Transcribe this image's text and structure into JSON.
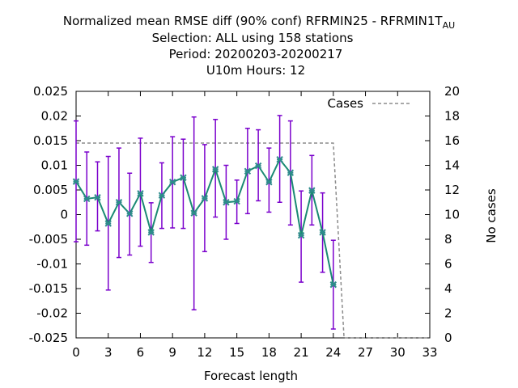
{
  "chart_data": {
    "type": "line",
    "title_lines": [
      "Normalized mean RMSE diff (90% conf) RFRMIN25 - RFRMIN1",
      "Selection: ALL using   158 stations",
      "Period: 20200203-20200217",
      "U10m   Hours:  12"
    ],
    "title_tail": {
      "base": "T",
      "sub": "AU"
    },
    "xlabel": "Forecast length",
    "ylabel_right": "No cases",
    "xlim": [
      0,
      33
    ],
    "ylim": [
      -0.025,
      0.025
    ],
    "y2lim": [
      0,
      20
    ],
    "x_ticks": [
      0,
      3,
      6,
      9,
      12,
      15,
      18,
      21,
      24,
      27,
      30,
      33
    ],
    "y_ticks": [
      -0.025,
      -0.02,
      -0.015,
      -0.01,
      -0.005,
      0,
      0.005,
      0.01,
      0.015,
      0.02,
      0.025
    ],
    "y_tick_labels": [
      "-0.025",
      "-0.02",
      "-0.015",
      "-0.01",
      "-0.005",
      "0",
      "0.005",
      "0.01",
      "0.015",
      "0.02",
      "0.025"
    ],
    "y2_ticks": [
      0,
      2,
      4,
      6,
      8,
      10,
      12,
      14,
      16,
      18,
      20
    ],
    "legend": {
      "label": "Cases",
      "placement": "top-right"
    },
    "colors": {
      "line": "#1a8a73",
      "marker": "#2e8b8b",
      "errorbar": "#7a00cc",
      "cases": "#8c8c8c"
    },
    "series": [
      {
        "style": "line-with-errorbars",
        "x": [
          0,
          1,
          2,
          3,
          4,
          5,
          6,
          7,
          8,
          9,
          10,
          11,
          12,
          13,
          14,
          15,
          16,
          17,
          18,
          19,
          20,
          21,
          22,
          23,
          24
        ],
        "y": [
          0.0067,
          0.0032,
          0.0035,
          -0.0018,
          0.0025,
          0.0002,
          0.0043,
          -0.0036,
          0.0039,
          0.0066,
          0.0075,
          0.0003,
          0.0033,
          0.0092,
          0.0025,
          0.0027,
          0.0088,
          0.0099,
          0.0066,
          0.0112,
          0.0085,
          -0.0042,
          0.0049,
          -0.0036,
          -0.0142
        ],
        "err_low": [
          -0.0055,
          -0.0062,
          -0.0033,
          -0.0153,
          -0.0087,
          -0.0082,
          -0.0064,
          -0.0097,
          -0.0028,
          -0.0027,
          -0.0028,
          -0.0193,
          -0.0075,
          -0.0005,
          -0.005,
          -0.0018,
          0.0002,
          0.0028,
          0.0005,
          0.0025,
          -0.0021,
          -0.0137,
          -0.0021,
          -0.0117,
          -0.0232
        ],
        "err_high": [
          0.019,
          0.0127,
          0.0107,
          0.0118,
          0.0135,
          0.0084,
          0.0155,
          0.0024,
          0.0105,
          0.0158,
          0.0153,
          0.0198,
          0.0142,
          0.0193,
          0.01,
          0.007,
          0.0175,
          0.0172,
          0.0135,
          0.0201,
          0.019,
          0.0048,
          0.012,
          0.0044,
          -0.0052
        ]
      },
      {
        "name": "Cases",
        "axis": "y2",
        "style": "dashed-step",
        "x": [
          0,
          24,
          25,
          33
        ],
        "y": [
          15.8,
          15.8,
          0,
          0
        ]
      }
    ]
  }
}
